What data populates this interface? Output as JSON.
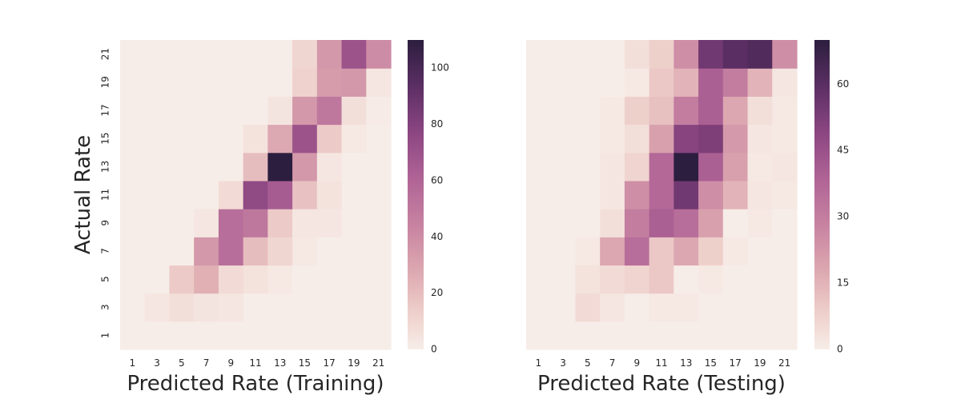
{
  "chart_data": [
    {
      "type": "heatmap",
      "title": "",
      "xlabel": "Predicted Rate (Training)",
      "ylabel": "Actual Rate",
      "x_ticks": [
        "1",
        "3",
        "5",
        "7",
        "9",
        "11",
        "13",
        "15",
        "17",
        "19",
        "21"
      ],
      "y_ticks": [
        "1",
        "3",
        "5",
        "7",
        "9",
        "11",
        "13",
        "15",
        "17",
        "19",
        "21"
      ],
      "colorbar": {
        "vmin": 0,
        "vmax": 110,
        "ticks": [
          0,
          20,
          40,
          60,
          80,
          100
        ]
      },
      "values": [
        [
          0,
          0,
          0,
          0,
          0,
          0,
          0,
          0,
          0,
          0,
          0
        ],
        [
          0,
          3,
          6,
          4,
          3,
          0,
          0,
          0,
          0,
          0,
          0
        ],
        [
          0,
          0,
          15,
          25,
          8,
          5,
          2,
          0,
          0,
          0,
          0
        ],
        [
          0,
          0,
          0,
          35,
          55,
          20,
          10,
          2,
          0,
          0,
          0
        ],
        [
          0,
          0,
          0,
          3,
          55,
          50,
          15,
          3,
          3,
          0,
          0
        ],
        [
          0,
          0,
          0,
          0,
          8,
          75,
          65,
          18,
          5,
          0,
          0
        ],
        [
          0,
          0,
          0,
          0,
          0,
          20,
          110,
          35,
          3,
          0,
          0
        ],
        [
          0,
          0,
          0,
          0,
          0,
          5,
          28,
          70,
          15,
          2,
          0
        ],
        [
          0,
          0,
          0,
          0,
          0,
          0,
          4,
          35,
          50,
          6,
          1
        ],
        [
          0,
          0,
          0,
          0,
          0,
          0,
          0,
          12,
          33,
          35,
          3
        ],
        [
          0,
          0,
          0,
          0,
          0,
          0,
          0,
          10,
          35,
          70,
          40
        ]
      ]
    },
    {
      "type": "heatmap",
      "title": "",
      "xlabel": "Predicted Rate (Testing)",
      "ylabel": "",
      "x_ticks": [
        "1",
        "3",
        "5",
        "7",
        "9",
        "11",
        "13",
        "15",
        "17",
        "19",
        "21"
      ],
      "y_ticks": [],
      "colorbar": {
        "vmin": 0,
        "vmax": 70,
        "ticks": [
          0,
          15,
          30,
          45,
          60
        ]
      },
      "values": [
        [
          0,
          0,
          0,
          0,
          0,
          0,
          0,
          0,
          0,
          0,
          0
        ],
        [
          0,
          0,
          5,
          2,
          0,
          1,
          1,
          0,
          0,
          0,
          0
        ],
        [
          0,
          0,
          3,
          5,
          7,
          10,
          0,
          1,
          0,
          0,
          0
        ],
        [
          0,
          0,
          1,
          18,
          35,
          10,
          18,
          8,
          1,
          0,
          0
        ],
        [
          0,
          0,
          0,
          4,
          30,
          40,
          35,
          20,
          0,
          1,
          0
        ],
        [
          0,
          0,
          0,
          2,
          25,
          37,
          55,
          25,
          15,
          2,
          1
        ],
        [
          0,
          0,
          0,
          2,
          7,
          37,
          70,
          40,
          20,
          1,
          2
        ],
        [
          0,
          0,
          0,
          1,
          4,
          20,
          50,
          52,
          22,
          2,
          1
        ],
        [
          0,
          0,
          0,
          1,
          8,
          12,
          30,
          40,
          18,
          4,
          1
        ],
        [
          0,
          0,
          0,
          0,
          1,
          10,
          15,
          40,
          30,
          15,
          2
        ],
        [
          0,
          0,
          0,
          0,
          4,
          8,
          25,
          55,
          60,
          62,
          25
        ]
      ]
    }
  ]
}
